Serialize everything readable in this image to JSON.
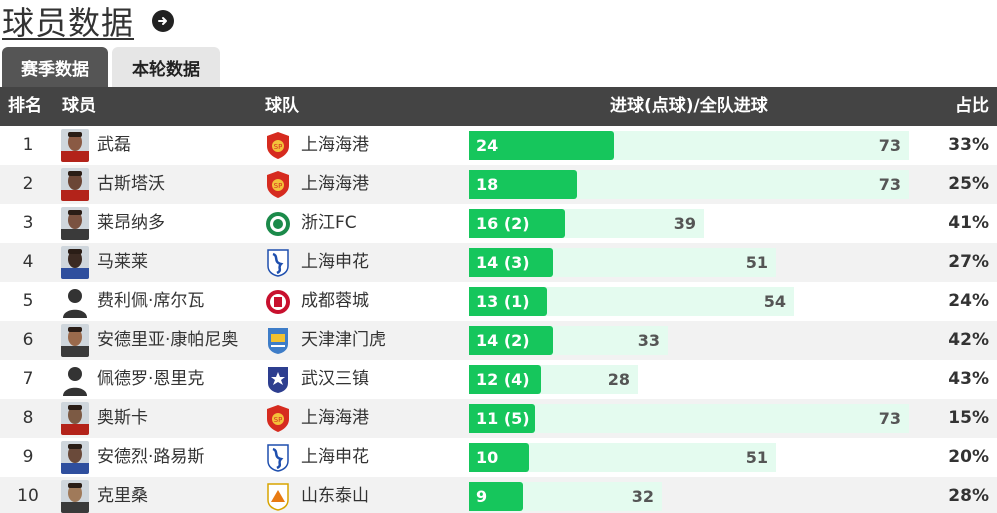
{
  "page": {
    "title": "球员数据"
  },
  "tabs": [
    {
      "label": "赛季数据",
      "active": true
    },
    {
      "label": "本轮数据",
      "active": false
    }
  ],
  "table": {
    "headers": {
      "rank": "排名",
      "player": "球员",
      "team": "球队",
      "goals": "进球(点球)/全队进球",
      "pct": "占比"
    },
    "rows": [
      {
        "rank": "1",
        "player": "武磊",
        "team": "上海海港",
        "team_logo": "shanghai-port-logo",
        "goals_label": "24",
        "goals": 24,
        "team_goals": "73",
        "pct": "33%"
      },
      {
        "rank": "2",
        "player": "古斯塔沃",
        "team": "上海海港",
        "team_logo": "shanghai-port-logo",
        "goals_label": "18",
        "goals": 18,
        "team_goals": "73",
        "pct": "25%"
      },
      {
        "rank": "3",
        "player": "莱昂纳多",
        "team": "浙江FC",
        "team_logo": "zhejiang-fc-logo",
        "goals_label": "16 (2)",
        "goals": 16,
        "team_goals": "39",
        "pct": "41%"
      },
      {
        "rank": "4",
        "player": "马莱莱",
        "team": "上海申花",
        "team_logo": "shanghai-shenhua-logo",
        "goals_label": "14 (3)",
        "goals": 14,
        "team_goals": "51",
        "pct": "27%"
      },
      {
        "rank": "5",
        "player": "费利佩·席尔瓦",
        "team": "成都蓉城",
        "team_logo": "chengdu-rongcheng-logo",
        "goals_label": "13 (1)",
        "goals": 13,
        "team_goals": "54",
        "pct": "24%"
      },
      {
        "rank": "6",
        "player": "安德里亚·康帕尼奥",
        "team": "天津津门虎",
        "team_logo": "tianjin-tiger-logo",
        "goals_label": "14 (2)",
        "goals": 14,
        "team_goals": "33",
        "pct": "42%"
      },
      {
        "rank": "7",
        "player": "佩德罗·恩里克",
        "team": "武汉三镇",
        "team_logo": "wuhan-three-towns-logo",
        "goals_label": "12 (4)",
        "goals": 12,
        "team_goals": "28",
        "pct": "43%"
      },
      {
        "rank": "8",
        "player": "奥斯卡",
        "team": "上海海港",
        "team_logo": "shanghai-port-logo",
        "goals_label": "11 (5)",
        "goals": 11,
        "team_goals": "73",
        "pct": "15%"
      },
      {
        "rank": "9",
        "player": "安德烈·路易斯",
        "team": "上海申花",
        "team_logo": "shanghai-shenhua-logo",
        "goals_label": "10",
        "goals": 10,
        "team_goals": "51",
        "pct": "20%"
      },
      {
        "rank": "10",
        "player": "克里桑",
        "team": "山东泰山",
        "team_logo": "shandong-taishan-logo",
        "goals_label": "9",
        "goals": 9,
        "team_goals": "32",
        "pct": "28%"
      }
    ]
  },
  "colors": {
    "bar_fill": "#16c65c",
    "bar_track": "#e4fbef",
    "header_bg": "#444444",
    "tab_active": "#555555",
    "tab_inactive": "#e6e6e6"
  }
}
